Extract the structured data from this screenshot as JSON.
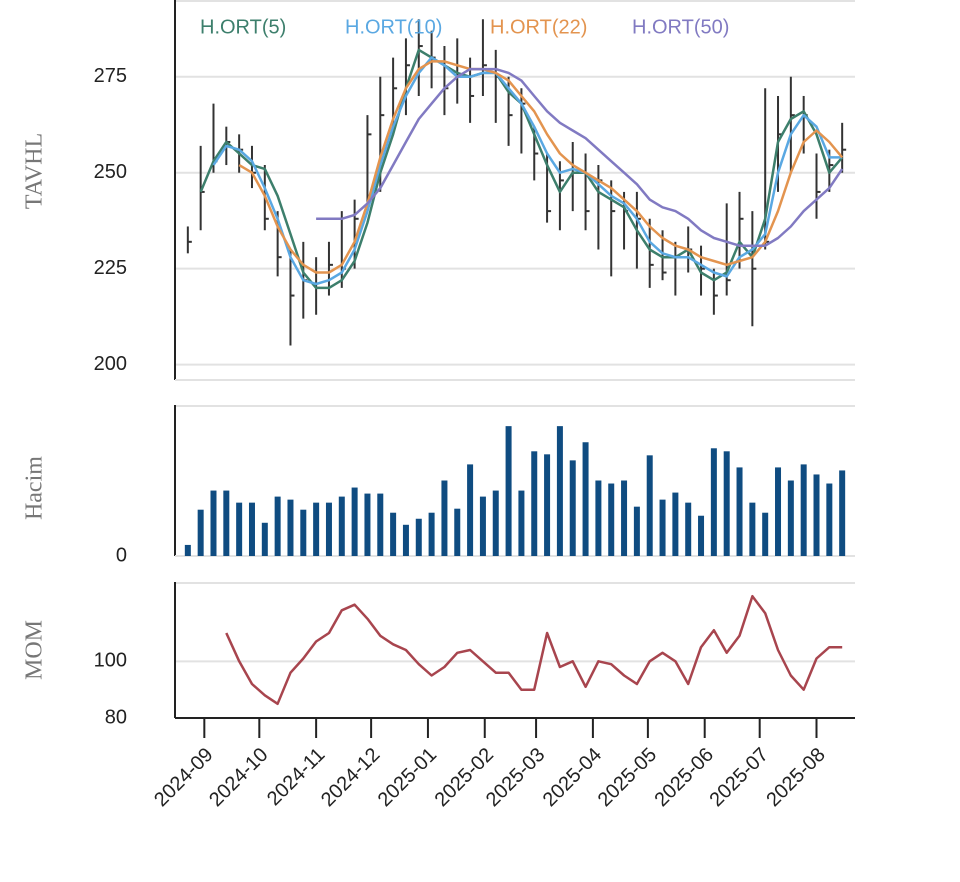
{
  "chart_data": [
    {
      "type": "ohlc",
      "ylabel": "TAVHL",
      "ylim": [
        196,
        295
      ],
      "yticks": [
        200,
        225,
        250,
        275
      ],
      "grid": true,
      "xlim": [
        "2024-08-16",
        "2025-08-22"
      ],
      "x": [
        "2024-08-23",
        "2024-08-30",
        "2024-09-06",
        "2024-09-13",
        "2024-09-20",
        "2024-09-27",
        "2024-10-04",
        "2024-10-11",
        "2024-10-18",
        "2024-10-25",
        "2024-11-01",
        "2024-11-08",
        "2024-11-15",
        "2024-11-22",
        "2024-11-29",
        "2024-12-06",
        "2024-12-13",
        "2024-12-20",
        "2024-12-27",
        "2025-01-03",
        "2025-01-10",
        "2025-01-17",
        "2025-01-24",
        "2025-01-31",
        "2025-02-07",
        "2025-02-14",
        "2025-02-21",
        "2025-02-28",
        "2025-03-07",
        "2025-03-14",
        "2025-03-21",
        "2025-03-28",
        "2025-04-04",
        "2025-04-11",
        "2025-04-18",
        "2025-04-25",
        "2025-05-02",
        "2025-05-09",
        "2025-05-16",
        "2025-05-23",
        "2025-05-30",
        "2025-06-06",
        "2025-06-13",
        "2025-06-20",
        "2025-06-27",
        "2025-07-04",
        "2025-07-11",
        "2025-07-18",
        "2025-07-25",
        "2025-08-01",
        "2025-08-08",
        "2025-08-15"
      ],
      "high": [
        236,
        257,
        268,
        262,
        260,
        257,
        252,
        240,
        230,
        232,
        228,
        232,
        240,
        243,
        265,
        275,
        280,
        285,
        290,
        287,
        283,
        285,
        280,
        290,
        282,
        275,
        272,
        262,
        255,
        253,
        258,
        255,
        252,
        248,
        245,
        245,
        238,
        235,
        232,
        236,
        231,
        225,
        242,
        245,
        240,
        272,
        270,
        275,
        270,
        255,
        256,
        263
      ],
      "low": [
        229,
        235,
        250,
        252,
        250,
        246,
        235,
        223,
        205,
        212,
        213,
        218,
        220,
        225,
        240,
        245,
        260,
        265,
        270,
        272,
        265,
        268,
        263,
        270,
        263,
        257,
        255,
        248,
        237,
        235,
        240,
        235,
        230,
        223,
        230,
        225,
        220,
        222,
        218,
        224,
        218,
        213,
        218,
        225,
        210,
        230,
        245,
        250,
        255,
        238,
        245,
        250
      ],
      "close": [
        232,
        245,
        253,
        258,
        256,
        250,
        238,
        228,
        218,
        222,
        220,
        226,
        225,
        238,
        260,
        265,
        272,
        278,
        283,
        280,
        272,
        275,
        270,
        278,
        275,
        265,
        268,
        255,
        240,
        248,
        250,
        240,
        248,
        240,
        240,
        238,
        226,
        224,
        228,
        230,
        225,
        218,
        222,
        238,
        225,
        232,
        260,
        265,
        265,
        245,
        252,
        256
      ],
      "series": [
        {
          "name": "H.ORT(5)",
          "color": "#3d7f6c",
          "values": [
            null,
            245,
            253,
            258,
            255,
            252,
            251,
            244,
            234,
            224,
            220,
            220,
            222,
            227,
            237,
            250,
            260,
            272,
            282,
            280,
            278,
            276,
            275,
            276,
            276,
            271,
            268,
            260,
            252,
            245,
            250,
            250,
            245,
            243,
            241,
            235,
            230,
            228,
            228,
            230,
            224,
            222,
            224,
            232,
            228,
            238,
            258,
            264,
            266,
            260,
            250,
            254
          ]
        },
        {
          "name": "H.ORT(10)",
          "color": "#5aa8e2",
          "values": [
            null,
            null,
            252,
            257,
            256,
            253,
            246,
            238,
            228,
            222,
            221,
            222,
            224,
            230,
            240,
            252,
            262,
            270,
            276,
            280,
            278,
            275,
            275,
            276,
            276,
            272,
            268,
            262,
            255,
            250,
            251,
            250,
            247,
            244,
            242,
            238,
            232,
            229,
            228,
            228,
            226,
            224,
            223,
            228,
            230,
            234,
            250,
            260,
            265,
            262,
            254,
            254
          ]
        },
        {
          "name": "H.ORT(22)",
          "color": "#e3944f",
          "values": [
            null,
            null,
            null,
            null,
            252,
            250,
            244,
            236,
            230,
            226,
            224,
            224,
            226,
            232,
            242,
            254,
            264,
            272,
            277,
            279,
            279,
            278,
            277,
            277,
            276,
            274,
            270,
            266,
            260,
            255,
            252,
            250,
            248,
            246,
            243,
            240,
            236,
            233,
            231,
            230,
            228,
            227,
            226,
            227,
            228,
            232,
            240,
            250,
            258,
            261,
            258,
            254
          ]
        },
        {
          "name": "H.ORT(50)",
          "color": "#817ac2",
          "values": [
            null,
            null,
            null,
            null,
            null,
            null,
            null,
            null,
            null,
            null,
            238,
            238,
            238,
            239,
            242,
            246,
            252,
            258,
            264,
            268,
            272,
            275,
            277,
            277,
            277,
            276,
            274,
            270,
            266,
            263,
            261,
            259,
            256,
            253,
            250,
            247,
            243,
            241,
            240,
            238,
            235,
            233,
            232,
            231,
            231,
            231,
            233,
            236,
            240,
            243,
            246,
            251
          ]
        }
      ]
    },
    {
      "type": "bar",
      "ylabel": "Hacim",
      "ylim": [
        0,
        150
      ],
      "yticks": [
        0
      ],
      "color": "#0f4c81",
      "values": [
        11,
        46,
        65,
        65,
        53,
        53,
        33,
        59,
        56,
        46,
        53,
        53,
        59,
        68,
        62,
        62,
        43,
        31,
        37,
        43,
        75,
        47,
        91,
        59,
        65,
        129,
        65,
        104,
        101,
        129,
        95,
        113,
        75,
        72,
        75,
        49,
        100,
        56,
        63,
        53,
        40,
        107,
        104,
        88,
        53,
        43,
        88,
        75,
        91,
        81,
        72,
        85
      ]
    },
    {
      "type": "line",
      "ylabel": "MOM",
      "ylim": [
        80,
        128
      ],
      "yticks": [
        80,
        100
      ],
      "grid": true,
      "color": "#a8454e",
      "values": [
        null,
        null,
        null,
        110,
        100,
        92,
        88,
        85,
        96,
        101,
        107,
        110,
        118,
        120,
        115,
        109,
        106,
        104,
        99,
        95,
        98,
        103,
        104,
        100,
        96,
        96,
        90,
        90,
        110,
        98,
        100,
        91,
        100,
        99,
        95,
        92,
        100,
        103,
        100,
        92,
        105,
        111,
        103,
        109,
        123,
        117,
        104,
        95,
        90,
        101,
        105,
        105
      ],
      "xticks": [
        {
          "value": "2024-09-01",
          "label": "2024-09"
        },
        {
          "value": "2024-10-01",
          "label": "2024-10"
        },
        {
          "value": "2024-11-01",
          "label": "2024-11"
        },
        {
          "value": "2024-12-01",
          "label": "2024-12"
        },
        {
          "value": "2025-01-01",
          "label": "2025-01"
        },
        {
          "value": "2025-02-01",
          "label": "2025-02"
        },
        {
          "value": "2025-03-01",
          "label": "2025-03"
        },
        {
          "value": "2025-04-01",
          "label": "2025-04"
        },
        {
          "value": "2025-05-01",
          "label": "2025-05"
        },
        {
          "value": "2025-06-01",
          "label": "2025-06"
        },
        {
          "value": "2025-07-01",
          "label": "2025-07"
        },
        {
          "value": "2025-08-01",
          "label": "2025-08"
        }
      ]
    }
  ]
}
